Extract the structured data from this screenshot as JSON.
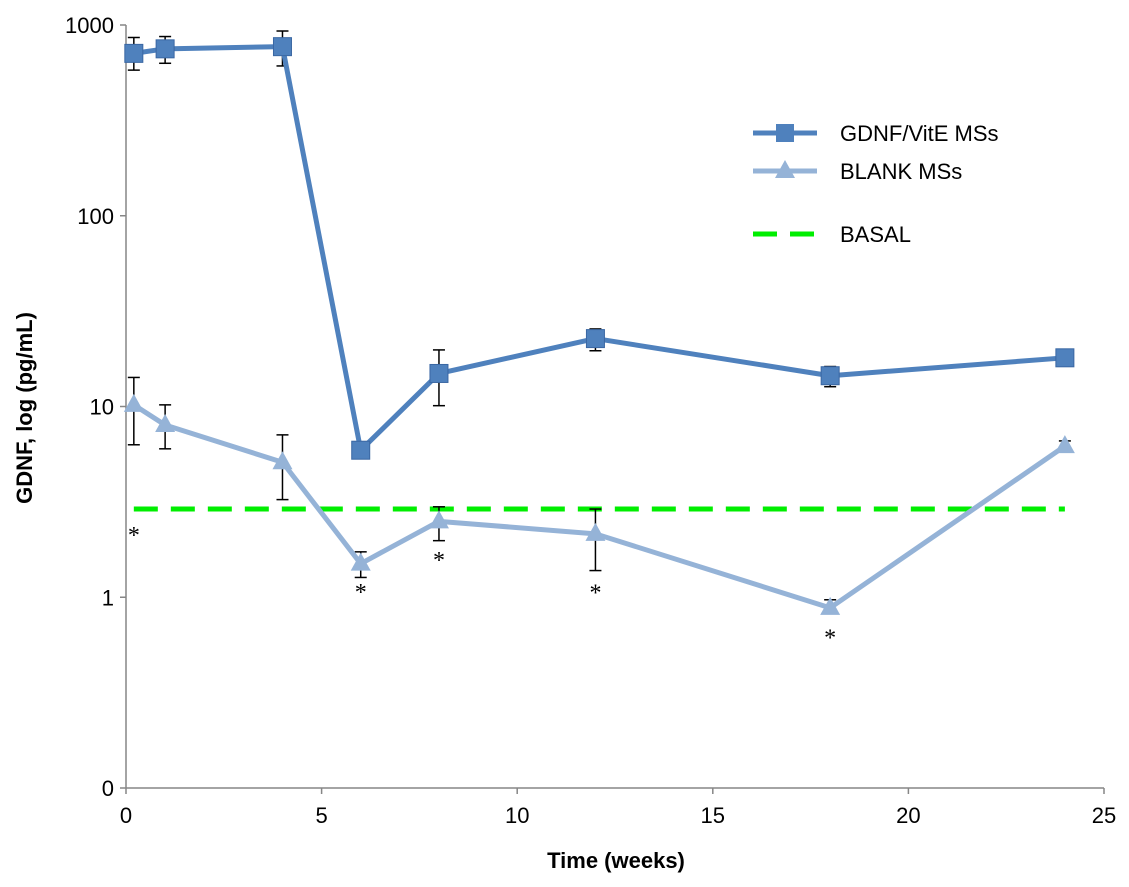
{
  "chart_data": {
    "type": "line",
    "title": "",
    "xlabel": "Time (weeks)",
    "ylabel": "GDNF, log (pg/mL)",
    "xlim": [
      0,
      25
    ],
    "x_ticks": [
      0,
      5,
      10,
      15,
      20,
      25
    ],
    "x_tick_labels": [
      "0",
      "5",
      "10",
      "15",
      "20",
      "25"
    ],
    "y_scale": "log",
    "y_ticks": [
      0.1,
      1,
      10,
      100,
      1000
    ],
    "y_tick_labels": [
      "0",
      "1",
      "10",
      "100",
      "1000"
    ],
    "grid": false,
    "legend_position": "top-right",
    "series": [
      {
        "name": "GDNF/VitE MSs",
        "color": "#4f81bd",
        "marker": "square",
        "x": [
          0.2,
          1,
          4,
          6,
          8,
          12,
          18,
          24
        ],
        "y": [
          710,
          750,
          770,
          5.9,
          14.9,
          22.7,
          14.5,
          18
        ],
        "err_upper": [
          860,
          870,
          930,
          null,
          19.8,
          25.5,
          16.2,
          null
        ],
        "err_lower": [
          580,
          630,
          610,
          null,
          10.1,
          19.6,
          12.7,
          null
        ]
      },
      {
        "name": "BLANK MSs",
        "color": "#95b3d7",
        "marker": "triangle",
        "x": [
          0.2,
          1,
          4,
          6,
          8,
          12,
          18,
          24
        ],
        "y": [
          10.2,
          8.0,
          5.1,
          1.5,
          2.5,
          2.15,
          0.88,
          6.2
        ],
        "err_upper": [
          14.2,
          10.2,
          7.1,
          1.73,
          2.98,
          2.9,
          0.97,
          6.6
        ],
        "err_lower": [
          6.3,
          6.0,
          3.25,
          1.27,
          1.98,
          1.38,
          null,
          null
        ]
      },
      {
        "name": "BASAL",
        "color": "#00ee00",
        "style": "dashed",
        "x": [
          0.2,
          24
        ],
        "y": [
          2.9,
          2.9
        ]
      }
    ],
    "annotations": [
      {
        "text": "*",
        "x": 0.2,
        "y": 1.92
      },
      {
        "text": "*",
        "x": 6,
        "y": 0.97
      },
      {
        "text": "*",
        "x": 8,
        "y": 1.42
      },
      {
        "text": "*",
        "x": 12,
        "y": 0.96
      },
      {
        "text": "*",
        "x": 18,
        "y": 0.56
      }
    ]
  }
}
